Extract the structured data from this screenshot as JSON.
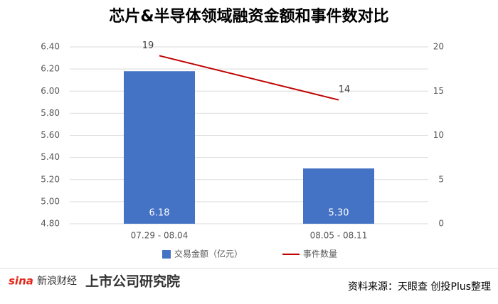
{
  "chart_data": {
    "type": "combo",
    "title": "芯片&半导体领域融资金额和事件数对比",
    "categories": [
      "07.29 - 08.04",
      "08.05 - 08.11"
    ],
    "series": [
      {
        "name": "交易金额（亿元）",
        "type": "bar",
        "color": "#4472c4",
        "values": [
          6.18,
          5.3
        ],
        "value_labels": [
          "6.18",
          "5.30"
        ]
      },
      {
        "name": "事件数量",
        "type": "line",
        "axis": "y2",
        "color": "#c00000",
        "values": [
          19,
          14
        ]
      }
    ],
    "ylim": [
      4.8,
      6.4
    ],
    "yticks": [
      {
        "value": 4.8,
        "label": "4.80"
      },
      {
        "value": 5.0,
        "label": "5.00"
      },
      {
        "value": 5.2,
        "label": "5.20"
      },
      {
        "value": 5.4,
        "label": "5.40"
      },
      {
        "value": 5.6,
        "label": "5.60"
      },
      {
        "value": 5.8,
        "label": "5.80"
      },
      {
        "value": 6.0,
        "label": "6.00"
      },
      {
        "value": 6.2,
        "label": "6.20"
      },
      {
        "value": 6.4,
        "label": "6.40"
      }
    ],
    "y2lim": [
      0,
      20
    ],
    "y2ticks": [
      0,
      5,
      10,
      15,
      20
    ],
    "grid": true,
    "legend": "bottom"
  },
  "footer": {
    "logo_left": "新浪财经",
    "logo_left_brand": "sina",
    "logo_right": "上市公司研究院",
    "source": "资料来源：天眼查 创投Plus整理"
  }
}
